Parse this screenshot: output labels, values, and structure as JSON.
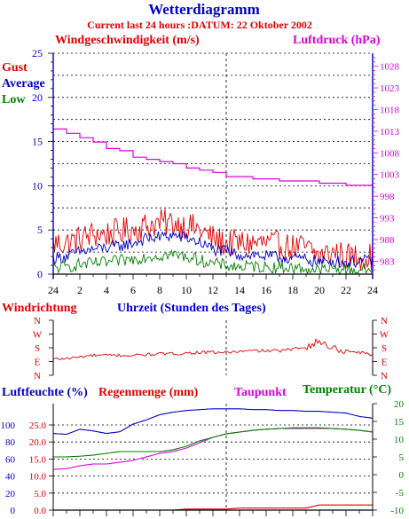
{
  "colors": {
    "red": "#e00000",
    "blue": "#0000cc",
    "green": "#008000",
    "magenta": "#dd00dd",
    "black": "#000000"
  },
  "header": {
    "title": "Wetterdiagramm",
    "subtitle": "Current last 24 hours :DATUM: 22 Oktober 2002"
  },
  "chart_data": [
    {
      "type": "line",
      "title": "Windgeschwindigkeit (m/s)",
      "ylabel_right": "Luftdruck (hPa)",
      "x_ticks": [
        "24",
        "2",
        "4",
        "6",
        "8",
        "10",
        "12",
        "14",
        "16",
        "18",
        "20",
        "22",
        "24"
      ],
      "x_range": [
        0,
        24
      ],
      "y_ticks_left": [
        0,
        5,
        10,
        15,
        20,
        25
      ],
      "ylim_left": [
        0,
        25
      ],
      "y_ticks_right": [
        983,
        988,
        993,
        998,
        1003,
        1008,
        1013,
        1018,
        1023,
        1028
      ],
      "ylim_right": [
        980,
        1031
      ],
      "grid": true,
      "legend": [
        "Gust",
        "Average",
        "Low"
      ],
      "series": [
        {
          "name": "Gust",
          "color": "red",
          "axis": "left",
          "noise": 1.6,
          "x": [
            0,
            1,
            2,
            3,
            4,
            5,
            6,
            7,
            8,
            9,
            10,
            11,
            12,
            13,
            14,
            15,
            16,
            17,
            18,
            19,
            20,
            21,
            22,
            23,
            24
          ],
          "y": [
            3.5,
            3.5,
            4,
            4.5,
            4.5,
            4.8,
            5,
            5.5,
            5.8,
            5.8,
            5.5,
            5,
            4,
            3.5,
            3.5,
            3.5,
            3.5,
            3.3,
            3,
            3,
            2,
            2.5,
            2,
            2,
            2
          ]
        },
        {
          "name": "Average",
          "color": "blue",
          "axis": "left",
          "noise": 0.7,
          "x": [
            0,
            1,
            2,
            3,
            4,
            5,
            6,
            7,
            8,
            9,
            10,
            11,
            12,
            13,
            14,
            15,
            16,
            17,
            18,
            19,
            20,
            21,
            22,
            23,
            24
          ],
          "y": [
            1.8,
            2,
            2.5,
            2.8,
            3,
            3.2,
            3.5,
            4,
            4.2,
            4.4,
            4.1,
            3.6,
            2.8,
            2.5,
            2.2,
            2.2,
            2,
            1.9,
            1.8,
            1.7,
            1.3,
            1.5,
            1.3,
            1.5,
            1.5
          ]
        },
        {
          "name": "Low",
          "color": "green",
          "axis": "left",
          "noise": 0.7,
          "x": [
            0,
            1,
            2,
            3,
            4,
            5,
            6,
            7,
            8,
            9,
            10,
            11,
            12,
            13,
            14,
            15,
            16,
            17,
            18,
            19,
            20,
            21,
            22,
            23,
            24
          ],
          "y": [
            0.7,
            0.8,
            1.1,
            1.2,
            1.3,
            1.5,
            1.7,
            2,
            2.1,
            2.2,
            2,
            1.6,
            1.2,
            1,
            0.8,
            0.9,
            0.8,
            0.8,
            0.7,
            0.6,
            0.4,
            0.6,
            0.5,
            0.5,
            0.5
          ]
        },
        {
          "name": "Luftdruck",
          "color": "magenta",
          "axis": "right",
          "step": true,
          "x": [
            0,
            1,
            2,
            3,
            4,
            5,
            6,
            7,
            8,
            9,
            10,
            11,
            12,
            13,
            14,
            15,
            16,
            17,
            18,
            19,
            20,
            21,
            22,
            23,
            24
          ],
          "y": [
            1013.5,
            1012.5,
            1011.5,
            1010.5,
            1009,
            1008.5,
            1007,
            1006.5,
            1006,
            1005.5,
            1004.5,
            1004,
            1003.5,
            1002.5,
            1002.5,
            1002,
            1002,
            1001.5,
            1001.5,
            1001.5,
            1001,
            1001,
            1000.5,
            1000.5,
            1000
          ]
        }
      ]
    },
    {
      "type": "line",
      "title": "Windrichtung",
      "xlabel": "Uhrzeit (Stunden des Tages)",
      "y_ticks": [
        "N",
        "W",
        "S",
        "E",
        "N"
      ],
      "x_range": [
        0,
        24
      ],
      "ylim": [
        0,
        360
      ],
      "series": [
        {
          "name": "Windrichtung",
          "color": "red",
          "noise": 10,
          "x": [
            0,
            1,
            2,
            3,
            4,
            5,
            6,
            7,
            8,
            9,
            10,
            11,
            12,
            13,
            14,
            15,
            16,
            17,
            18,
            19,
            20,
            21,
            22,
            23,
            24
          ],
          "y": [
            105,
            110,
            120,
            130,
            130,
            130,
            130,
            135,
            140,
            140,
            145,
            150,
            150,
            150,
            155,
            160,
            160,
            160,
            170,
            190,
            220,
            180,
            160,
            150,
            135
          ]
        }
      ]
    },
    {
      "type": "line",
      "titles": [
        "Luftfeuchte (%)",
        "Regenmenge (mm)",
        "Taupunkt",
        "Temperatur (°C)"
      ],
      "x_range": [
        0,
        24
      ],
      "y_ticks_humidity": [
        0,
        20,
        40,
        60,
        80,
        100
      ],
      "y_ticks_rain": [
        "0.0",
        "5.0",
        "10.0",
        "15.0",
        "20.0",
        "25.0"
      ],
      "ylim_humidity": [
        0,
        125
      ],
      "ylim_rain": [
        0,
        31.25
      ],
      "y_ticks_temperature": [
        -10,
        -5,
        0,
        5,
        10,
        15,
        20
      ],
      "ylim_temperature": [
        -10,
        20
      ],
      "series": [
        {
          "name": "Luftfeuchte",
          "color": "blue",
          "axis": "humidity",
          "x": [
            0,
            1,
            2,
            3,
            4,
            5,
            6,
            7,
            8,
            9,
            10,
            11,
            12,
            13,
            14,
            15,
            16,
            17,
            18,
            19,
            20,
            21,
            22,
            23,
            24
          ],
          "y": [
            90,
            89,
            95,
            93,
            90,
            92,
            101,
            106,
            112,
            115,
            117,
            118,
            119,
            119,
            119,
            118,
            118,
            117,
            117,
            116,
            116,
            115,
            114,
            110,
            108
          ]
        },
        {
          "name": "Regenmenge",
          "color": "red",
          "axis": "rain",
          "x": [
            0,
            9,
            10,
            13,
            14,
            19,
            20,
            24
          ],
          "y": [
            0,
            0,
            0.3,
            0.3,
            0.6,
            0.6,
            1.5,
            1.5
          ]
        },
        {
          "name": "Taupunkt",
          "color": "magenta",
          "axis": "temperature",
          "x": [
            0,
            1,
            2,
            3,
            4,
            5,
            6,
            7,
            8,
            9,
            10,
            11,
            12,
            13,
            14,
            15,
            16,
            17,
            18,
            19,
            20,
            21,
            22,
            23,
            24
          ],
          "y": [
            1.5,
            1.7,
            2.5,
            3,
            3,
            3.5,
            4,
            5,
            6,
            6.5,
            7.5,
            9,
            10.5,
            11.5,
            12,
            12.5,
            12.8,
            13,
            13,
            13,
            13,
            13,
            12.8,
            12.5,
            12
          ]
        },
        {
          "name": "Temperatur",
          "color": "green",
          "axis": "temperature",
          "x": [
            0,
            1,
            2,
            3,
            4,
            5,
            6,
            7,
            8,
            9,
            10,
            11,
            12,
            13,
            14,
            15,
            16,
            17,
            18,
            19,
            20,
            21,
            22,
            23,
            24
          ],
          "y": [
            5,
            5,
            5.2,
            5.5,
            6,
            6.5,
            6.5,
            6.5,
            6.5,
            7,
            8,
            9.5,
            10.5,
            11.5,
            12,
            12.5,
            12.8,
            13,
            13.2,
            13.2,
            13.2,
            13,
            12.8,
            12.5,
            12
          ]
        }
      ]
    }
  ]
}
